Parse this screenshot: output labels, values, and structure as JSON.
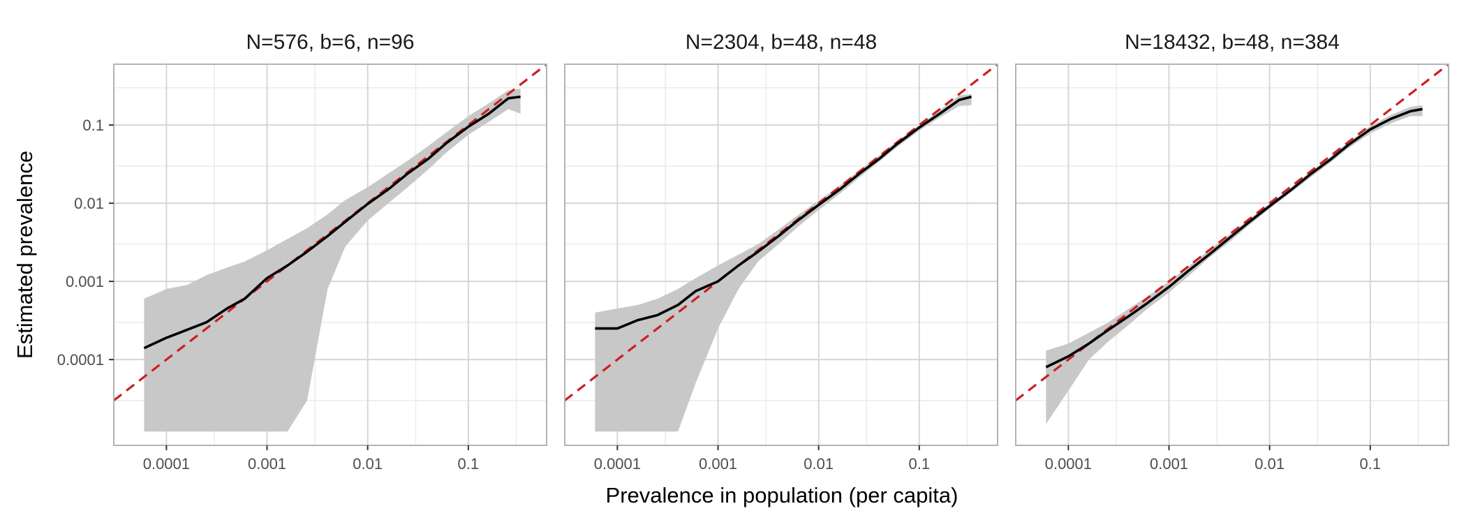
{
  "figure": {
    "xlabel": "Prevalence in population (per capita)",
    "ylabel": "Estimated prevalence"
  },
  "colors": {
    "ribbon": "#c8c8c8",
    "estimate_line": "#000000",
    "identity_line": "#cc1f1f",
    "panel_border": "#b3b3b3",
    "grid_major": "#d6d6d6",
    "grid_minor": "#ebebeb"
  },
  "chart_data": [
    {
      "type": "line",
      "title": "N=576, b=6, n=96",
      "x_scale": "log10",
      "y_scale": "log10",
      "xlim": [
        3e-05,
        0.6
      ],
      "ylim": [
        8e-06,
        0.6
      ],
      "x_ticks": [
        0.0001,
        0.001,
        0.01,
        0.1
      ],
      "x_tick_labels": [
        "0.0001",
        "0.001",
        "0.01",
        "0.1"
      ],
      "y_ticks": [
        0.0001,
        0.001,
        0.01,
        0.1
      ],
      "y_tick_labels": [
        "0.0001",
        "0.001",
        "0.01",
        "0.1"
      ],
      "grid": true,
      "reference_line": "y = x (dashed red)",
      "series": [
        {
          "x": [
            6e-05,
            0.0001,
            0.00016,
            0.00025,
            0.0004,
            0.0006,
            0.001,
            0.0016,
            0.0025,
            0.004,
            0.006,
            0.01,
            0.016,
            0.025,
            0.04,
            0.06,
            0.1,
            0.16,
            0.25,
            0.33
          ],
          "y": [
            0.00014,
            0.00019,
            0.00024,
            0.0003,
            0.00045,
            0.0006,
            0.0011,
            0.0016,
            0.0024,
            0.0038,
            0.0058,
            0.0098,
            0.015,
            0.024,
            0.037,
            0.058,
            0.095,
            0.14,
            0.22,
            0.23
          ],
          "lower": [
            1.2e-05,
            1.2e-05,
            1.2e-05,
            1.2e-05,
            1.2e-05,
            1.2e-05,
            1.2e-05,
            1.2e-05,
            3e-05,
            0.0008,
            0.0028,
            0.006,
            0.01,
            0.016,
            0.027,
            0.044,
            0.075,
            0.11,
            0.16,
            0.14
          ],
          "upper": [
            0.0006,
            0.0008,
            0.0009,
            0.0012,
            0.0015,
            0.0018,
            0.0025,
            0.0035,
            0.0048,
            0.0072,
            0.011,
            0.016,
            0.024,
            0.035,
            0.054,
            0.08,
            0.13,
            0.19,
            0.28,
            0.29
          ]
        }
      ]
    },
    {
      "type": "line",
      "title": "N=2304, b=48, n=48",
      "x_scale": "log10",
      "y_scale": "log10",
      "xlim": [
        3e-05,
        0.6
      ],
      "ylim": [
        8e-06,
        0.6
      ],
      "x_ticks": [
        0.0001,
        0.001,
        0.01,
        0.1
      ],
      "x_tick_labels": [
        "0.0001",
        "0.001",
        "0.01",
        "0.1"
      ],
      "y_ticks": [
        0.0001,
        0.001,
        0.01,
        0.1
      ],
      "y_tick_labels": [
        "0.0001",
        "0.001",
        "0.01",
        "0.1"
      ],
      "grid": true,
      "reference_line": "y = x (dashed red)",
      "series": [
        {
          "x": [
            6e-05,
            0.0001,
            0.00016,
            0.00025,
            0.0004,
            0.0006,
            0.001,
            0.0016,
            0.0025,
            0.004,
            0.006,
            0.01,
            0.016,
            0.025,
            0.04,
            0.06,
            0.1,
            0.16,
            0.25,
            0.33
          ],
          "y": [
            0.00025,
            0.00025,
            0.00032,
            0.00037,
            0.0005,
            0.00075,
            0.001,
            0.0016,
            0.0024,
            0.0038,
            0.0058,
            0.0095,
            0.0148,
            0.0235,
            0.037,
            0.057,
            0.093,
            0.14,
            0.21,
            0.23
          ],
          "lower": [
            1.2e-05,
            1.2e-05,
            1.2e-05,
            1.2e-05,
            1.2e-05,
            5e-05,
            0.00025,
            0.0008,
            0.0018,
            0.003,
            0.0048,
            0.0082,
            0.013,
            0.021,
            0.034,
            0.052,
            0.085,
            0.125,
            0.175,
            0.18
          ],
          "upper": [
            0.0004,
            0.00045,
            0.0005,
            0.0006,
            0.0008,
            0.0011,
            0.0016,
            0.0022,
            0.003,
            0.0046,
            0.0068,
            0.0108,
            0.0166,
            0.026,
            0.041,
            0.062,
            0.1,
            0.155,
            0.24,
            0.25
          ]
        }
      ]
    },
    {
      "type": "line",
      "title": "N=18432, b=48, n=384",
      "x_scale": "log10",
      "y_scale": "log10",
      "xlim": [
        3e-05,
        0.6
      ],
      "ylim": [
        8e-06,
        0.6
      ],
      "x_ticks": [
        0.0001,
        0.001,
        0.01,
        0.1
      ],
      "x_tick_labels": [
        "0.0001",
        "0.001",
        "0.01",
        "0.1"
      ],
      "y_ticks": [
        0.0001,
        0.001,
        0.01,
        0.1
      ],
      "y_tick_labels": [
        "0.0001",
        "0.001",
        "0.01",
        "0.1"
      ],
      "grid": true,
      "reference_line": "y = x (dashed red)",
      "series": [
        {
          "x": [
            6e-05,
            0.0001,
            0.00016,
            0.00025,
            0.0004,
            0.0006,
            0.001,
            0.0016,
            0.0025,
            0.004,
            0.006,
            0.01,
            0.016,
            0.025,
            0.04,
            0.06,
            0.1,
            0.16,
            0.25,
            0.33
          ],
          "y": [
            8e-05,
            0.00011,
            0.00016,
            0.00024,
            0.00036,
            0.00052,
            0.00085,
            0.0014,
            0.0022,
            0.0036,
            0.0055,
            0.0092,
            0.0145,
            0.023,
            0.036,
            0.055,
            0.088,
            0.12,
            0.15,
            0.16
          ],
          "lower": [
            1.5e-05,
            4e-05,
            0.0001,
            0.00017,
            0.00028,
            0.00044,
            0.00072,
            0.0012,
            0.002,
            0.0032,
            0.005,
            0.0085,
            0.0135,
            0.021,
            0.033,
            0.05,
            0.078,
            0.105,
            0.13,
            0.13
          ],
          "upper": [
            0.00013,
            0.00016,
            0.00022,
            0.0003,
            0.00045,
            0.00063,
            0.001,
            0.0016,
            0.0025,
            0.004,
            0.006,
            0.0098,
            0.0155,
            0.025,
            0.039,
            0.06,
            0.097,
            0.135,
            0.17,
            0.18
          ]
        }
      ]
    }
  ]
}
